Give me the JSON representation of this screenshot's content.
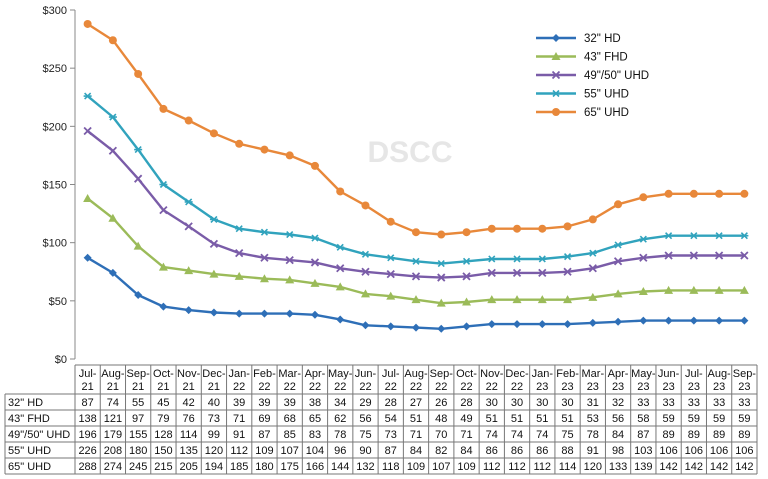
{
  "chart_data": {
    "type": "line",
    "title": "",
    "xlabel": "",
    "ylabel": "",
    "watermark": "DSCC",
    "ylim": [
      0,
      300
    ],
    "y_ticks": [
      "$0",
      "$50",
      "$100",
      "$150",
      "$200",
      "$250",
      "$300"
    ],
    "grid": false,
    "legend_position": "top-right",
    "categories": [
      [
        "Jul-",
        "21"
      ],
      [
        "Aug-",
        "21"
      ],
      [
        "Sep-",
        "21"
      ],
      [
        "Oct-",
        "21"
      ],
      [
        "Nov-",
        "21"
      ],
      [
        "Dec-",
        "21"
      ],
      [
        "Jan-",
        "22"
      ],
      [
        "Feb-",
        "22"
      ],
      [
        "Mar-",
        "22"
      ],
      [
        "Apr-",
        "22"
      ],
      [
        "May-",
        "22"
      ],
      [
        "Jun-",
        "22"
      ],
      [
        "Jul-",
        "22"
      ],
      [
        "Aug-",
        "22"
      ],
      [
        "Sep-",
        "22"
      ],
      [
        "Oct-",
        "22"
      ],
      [
        "Nov-",
        "22"
      ],
      [
        "Dec-",
        "22"
      ],
      [
        "Jan-",
        "23"
      ],
      [
        "Feb-",
        "23"
      ],
      [
        "Mar-",
        "23"
      ],
      [
        "Apr-",
        "23"
      ],
      [
        "May-",
        "23"
      ],
      [
        "Jun-",
        "23"
      ],
      [
        "Jul-",
        "23"
      ],
      [
        "Aug-",
        "23"
      ],
      [
        "Sep-",
        "23"
      ]
    ],
    "series": [
      {
        "name": "32\" HD",
        "color": "#2E6FB7",
        "marker": "diamond",
        "values": [
          87,
          74,
          55,
          45,
          42,
          40,
          39,
          39,
          39,
          38,
          34,
          29,
          28,
          27,
          26,
          28,
          30,
          30,
          30,
          30,
          31,
          32,
          33,
          33,
          33,
          33,
          33
        ]
      },
      {
        "name": "43\" FHD",
        "color": "#9BBB59",
        "marker": "triangle",
        "values": [
          138,
          121,
          97,
          79,
          76,
          73,
          71,
          69,
          68,
          65,
          62,
          56,
          54,
          51,
          48,
          49,
          51,
          51,
          51,
          51,
          53,
          56,
          58,
          59,
          59,
          59,
          59
        ]
      },
      {
        "name": "49\"/50\" UHD",
        "color": "#7A5CA8",
        "marker": "x",
        "values": [
          196,
          179,
          155,
          128,
          114,
          99,
          91,
          87,
          85,
          83,
          78,
          75,
          73,
          71,
          70,
          71,
          74,
          74,
          74,
          75,
          78,
          84,
          87,
          89,
          89,
          89,
          89
        ]
      },
      {
        "name": "55\" UHD",
        "color": "#31A3BD",
        "marker": "star",
        "values": [
          226,
          208,
          180,
          150,
          135,
          120,
          112,
          109,
          107,
          104,
          96,
          90,
          87,
          84,
          82,
          84,
          86,
          86,
          86,
          88,
          91,
          98,
          103,
          106,
          106,
          106,
          106
        ]
      },
      {
        "name": "65\" UHD",
        "color": "#E8883A",
        "marker": "circle",
        "values": [
          288,
          274,
          245,
          215,
          205,
          194,
          185,
          180,
          175,
          166,
          144,
          132,
          118,
          109,
          107,
          109,
          112,
          112,
          112,
          114,
          120,
          133,
          139,
          142,
          142,
          142,
          142
        ]
      }
    ]
  }
}
